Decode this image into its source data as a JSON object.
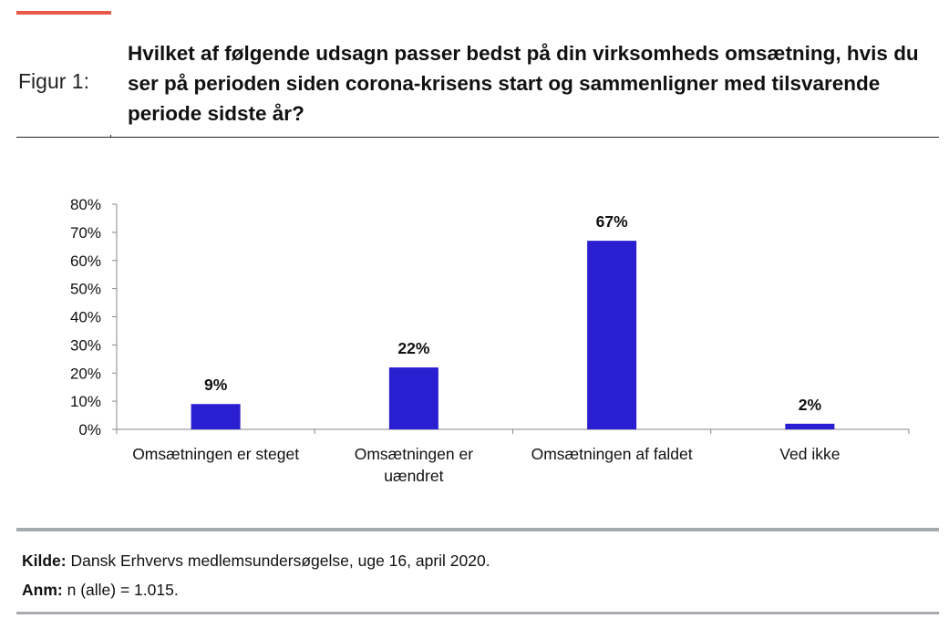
{
  "header": {
    "figure_label": "Figur 1:",
    "title": "Hvilket af følgende udsagn passer bedst på din virksomheds omsætning, hvis du ser på perioden siden corona-krisens start og sammenligner med tilsvarende periode sidste år?"
  },
  "colors": {
    "accent": "#ea5a48",
    "bar": "#2a1fd0",
    "rule": "#a7abaf"
  },
  "chart_data": {
    "type": "bar",
    "title": "",
    "xlabel": "",
    "ylabel": "",
    "categories": [
      [
        "Omsætningen er steget"
      ],
      [
        "Omsætningen er",
        "uændret"
      ],
      [
        "Omsætningen af faldet"
      ],
      [
        "Ved ikke"
      ]
    ],
    "values": [
      9,
      22,
      67,
      2
    ],
    "data_labels": [
      "9%",
      "22%",
      "67%",
      "2%"
    ],
    "ylim": [
      0,
      80
    ],
    "yticks": [
      0,
      10,
      20,
      30,
      40,
      50,
      60,
      70,
      80
    ],
    "ytick_labels": [
      "0%",
      "10%",
      "20%",
      "30%",
      "40%",
      "50%",
      "60%",
      "70%",
      "80%"
    ],
    "grid": false,
    "legend": "none"
  },
  "footer": {
    "source_label": "Kilde:",
    "source_text": "Dansk Erhvervs medlemsundersøgelse, uge 16, april 2020.",
    "note_label": "Anm:",
    "note_text": "n (alle) = 1.015."
  }
}
